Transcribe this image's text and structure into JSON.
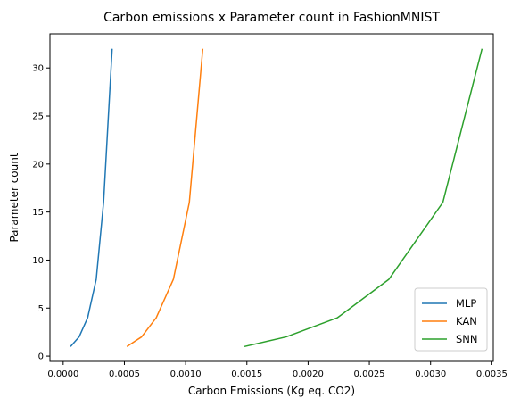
{
  "chart_data": {
    "type": "line",
    "title": "Carbon emissions x Parameter count in FashionMNIST",
    "xlabel": "Carbon Emissions (Kg eq. CO2)",
    "ylabel": "Parameter count",
    "xlim": [
      -0.000108,
      0.003512
    ],
    "ylim": [
      -0.55,
      33.55
    ],
    "xticks": [
      0.0,
      0.0005,
      0.001,
      0.0015,
      0.002,
      0.0025,
      0.003,
      0.0035
    ],
    "xtick_labels": [
      "0.0000",
      "0.0005",
      "0.0010",
      "0.0015",
      "0.0020",
      "0.0025",
      "0.0030",
      "0.0035"
    ],
    "yticks": [
      0,
      5,
      10,
      15,
      20,
      25,
      30
    ],
    "ytick_labels": [
      "0",
      "5",
      "10",
      "15",
      "20",
      "25",
      "30"
    ],
    "legend_position": "lower-right",
    "grid": false,
    "series": [
      {
        "name": "MLP",
        "color": "#1f77b4",
        "x": [
          6e-05,
          0.00013,
          0.0002,
          0.00027,
          0.00033,
          0.0004
        ],
        "y": [
          1,
          2,
          4,
          8,
          16,
          32
        ]
      },
      {
        "name": "KAN",
        "color": "#ff7f0e",
        "x": [
          0.00052,
          0.00064,
          0.00076,
          0.0009,
          0.00103,
          0.00114
        ],
        "y": [
          1,
          2,
          4,
          8,
          16,
          32
        ]
      },
      {
        "name": "SNN",
        "color": "#2ca02c",
        "x": [
          0.00148,
          0.00182,
          0.00224,
          0.00266,
          0.0031,
          0.00342
        ],
        "y": [
          1,
          2,
          4,
          8,
          16,
          32
        ]
      }
    ]
  }
}
